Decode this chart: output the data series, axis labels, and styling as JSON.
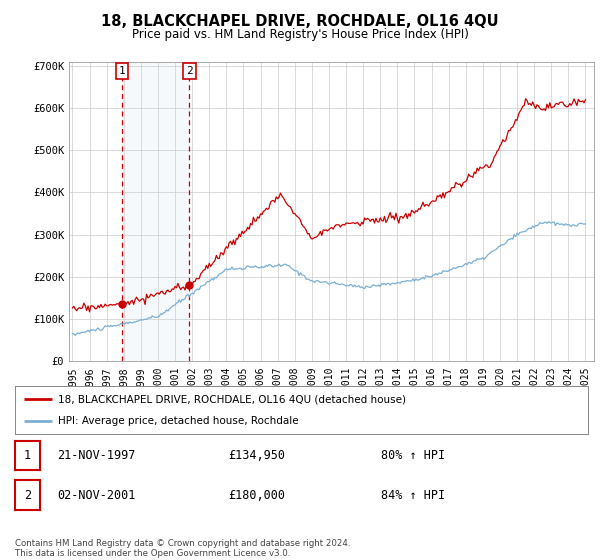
{
  "title": "18, BLACKCHAPEL DRIVE, ROCHDALE, OL16 4QU",
  "subtitle": "Price paid vs. HM Land Registry's House Price Index (HPI)",
  "ylabel_ticks": [
    "£0",
    "£100K",
    "£200K",
    "£300K",
    "£400K",
    "£500K",
    "£600K",
    "£700K"
  ],
  "ytick_values": [
    0,
    100000,
    200000,
    300000,
    400000,
    500000,
    600000,
    700000
  ],
  "ylim": [
    0,
    710000
  ],
  "xlim_start": 1994.8,
  "xlim_end": 2025.5,
  "transaction1_date": 1997.89,
  "transaction1_price": 134950,
  "transaction1_label": "1",
  "transaction2_date": 2001.84,
  "transaction2_price": 180000,
  "transaction2_label": "2",
  "line_color_property": "#cc0000",
  "line_color_hpi": "#7bafd4",
  "background_color": "#ffffff",
  "grid_color": "#cccccc",
  "legend_label_property": "18, BLACKCHAPEL DRIVE, ROCHDALE, OL16 4QU (detached house)",
  "legend_label_hpi": "HPI: Average price, detached house, Rochdale",
  "table_rows": [
    {
      "num": "1",
      "date": "21-NOV-1997",
      "price": "£134,950",
      "hpi": "80% ↑ HPI"
    },
    {
      "num": "2",
      "date": "02-NOV-2001",
      "price": "£180,000",
      "hpi": "84% ↑ HPI"
    }
  ],
  "footer": "Contains HM Land Registry data © Crown copyright and database right 2024.\nThis data is licensed under the Open Government Licence v3.0.",
  "xtick_years": [
    1995,
    1996,
    1997,
    1998,
    1999,
    2000,
    2001,
    2002,
    2003,
    2004,
    2005,
    2006,
    2007,
    2008,
    2009,
    2010,
    2011,
    2012,
    2013,
    2014,
    2015,
    2016,
    2017,
    2018,
    2019,
    2020,
    2021,
    2022,
    2023,
    2024,
    2025
  ]
}
